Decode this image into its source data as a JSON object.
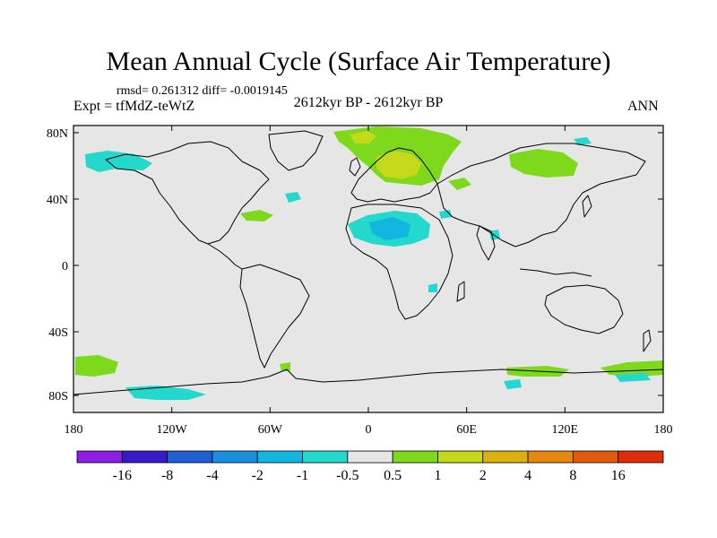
{
  "title": "Mean Annual Cycle (Surface Air Temperature)",
  "stats_line": "rmsd= 0.261312  diff= -0.0019145",
  "experiment": "Expt = tfMdZ-teWtZ",
  "period": "2612kyr BP - 2612kyr BP",
  "season": "ANN",
  "lat_labels": [
    "80N",
    "40N",
    "0",
    "40S",
    "80S"
  ],
  "lon_labels": [
    "180",
    "120W",
    "60W",
    "0",
    "60E",
    "120E",
    "180"
  ],
  "colorbar": {
    "labels": [
      "-16",
      "-8",
      "-4",
      "-2",
      "-1",
      "-0.5",
      "0.5",
      "1",
      "2",
      "4",
      "8",
      "16"
    ],
    "colors": [
      "#8c1fe3",
      "#3a19c9",
      "#1f5fd6",
      "#1a8fde",
      "#12b6de",
      "#23d8cc",
      "#e6e6e6",
      "#7ed81b",
      "#c4d91a",
      "#ddb012",
      "#e6870f",
      "#e35a0c",
      "#df2c0b"
    ]
  },
  "colors": {
    "land_background": "#e6e6e6",
    "coast": "#000000"
  },
  "anomaly_regions": [
    {
      "name": "scandinavia-arctic",
      "color": "#7ed81b"
    },
    {
      "name": "northern-europe-core",
      "color": "#c4d91a"
    },
    {
      "name": "siberia",
      "color": "#7ed81b"
    },
    {
      "name": "sahara",
      "color": "#23d8cc"
    },
    {
      "name": "sahara-core",
      "color": "#12b6de"
    },
    {
      "name": "alaska",
      "color": "#23d8cc"
    },
    {
      "name": "antarctica-pacific",
      "color": "#7ed81b"
    },
    {
      "name": "southern-ocean-pacific",
      "color": "#23d8cc"
    }
  ]
}
